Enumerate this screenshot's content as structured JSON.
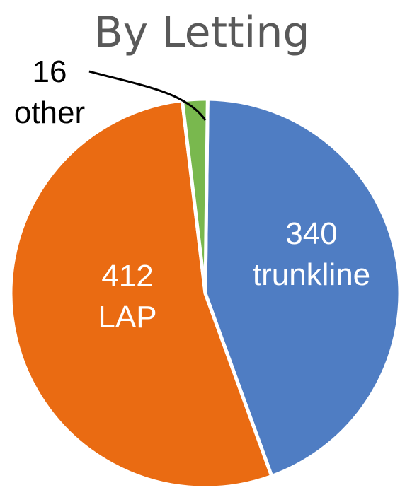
{
  "chart_data": {
    "type": "pie",
    "title": "By Letting",
    "slices": [
      {
        "name": "trunkline",
        "value": 340,
        "value_label": "340",
        "label": "trunkline",
        "color": "#4f7dc3"
      },
      {
        "name": "LAP",
        "value": 412,
        "value_label": "412",
        "label": "LAP",
        "color": "#ea6b12"
      },
      {
        "name": "other",
        "value": 16,
        "value_label": "16",
        "label": "other",
        "color": "#79b84e"
      }
    ],
    "legend": "none",
    "label_placement": {
      "trunkline": "inside",
      "LAP": "inside",
      "other": "outside-top-left"
    },
    "label_color_inside": "#ffffff",
    "label_color_outside": "#000000"
  }
}
